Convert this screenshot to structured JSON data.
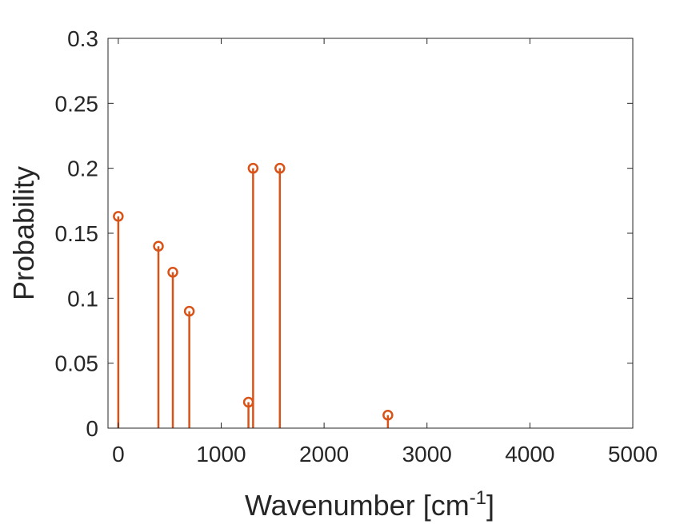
{
  "chart_data": {
    "type": "stem",
    "xlabel": "Wavenumber [cm",
    "xlabel_superscript": "-1",
    "xlabel_suffix": "]",
    "ylabel": "Probability",
    "xlim": [
      -100,
      5000
    ],
    "ylim": [
      0,
      0.3
    ],
    "xticks": [
      0,
      1000,
      2000,
      3000,
      4000,
      5000
    ],
    "xtick_labels": [
      "0",
      "1000",
      "2000",
      "3000",
      "4000",
      "5000"
    ],
    "yticks": [
      0,
      0.05,
      0.1,
      0.15,
      0.2,
      0.25,
      0.3
    ],
    "ytick_labels": [
      "0",
      "0.05",
      "0.1",
      "0.15",
      "0.2",
      "0.25",
      "0.3"
    ],
    "grid": false,
    "box": true,
    "series": [
      {
        "color": "#D95319",
        "marker": "open-circle",
        "points": [
          {
            "x": 0,
            "y": 0.163
          },
          {
            "x": 390,
            "y": 0.14
          },
          {
            "x": 530,
            "y": 0.12
          },
          {
            "x": 690,
            "y": 0.09
          },
          {
            "x": 1265,
            "y": 0.02
          },
          {
            "x": 1310,
            "y": 0.2
          },
          {
            "x": 1570,
            "y": 0.2
          },
          {
            "x": 2620,
            "y": 0.01
          }
        ]
      }
    ]
  }
}
